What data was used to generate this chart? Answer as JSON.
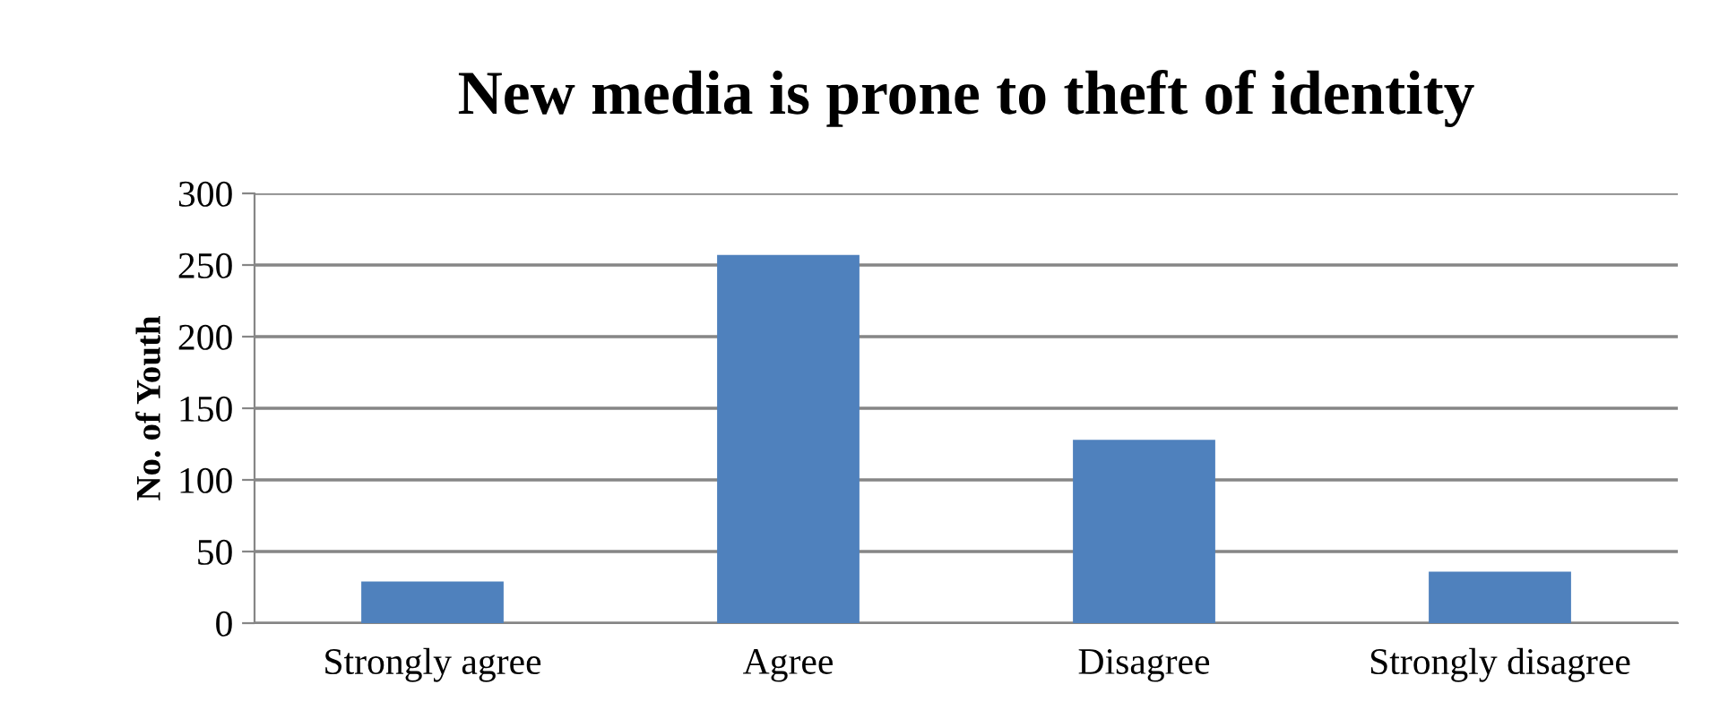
{
  "chart_data": {
    "type": "bar",
    "title": "New media is prone to theft of identity",
    "ylabel": "No. of Youth",
    "categories": [
      "Strongly agree",
      "Agree",
      "Disagree",
      "Strongly disagree"
    ],
    "values": [
      29,
      257,
      128,
      36
    ],
    "color": "#4f81bd",
    "ylim": [
      0,
      300
    ],
    "yticks": [
      0,
      50,
      100,
      150,
      200,
      250,
      300
    ],
    "grid": "y",
    "legend": false
  }
}
